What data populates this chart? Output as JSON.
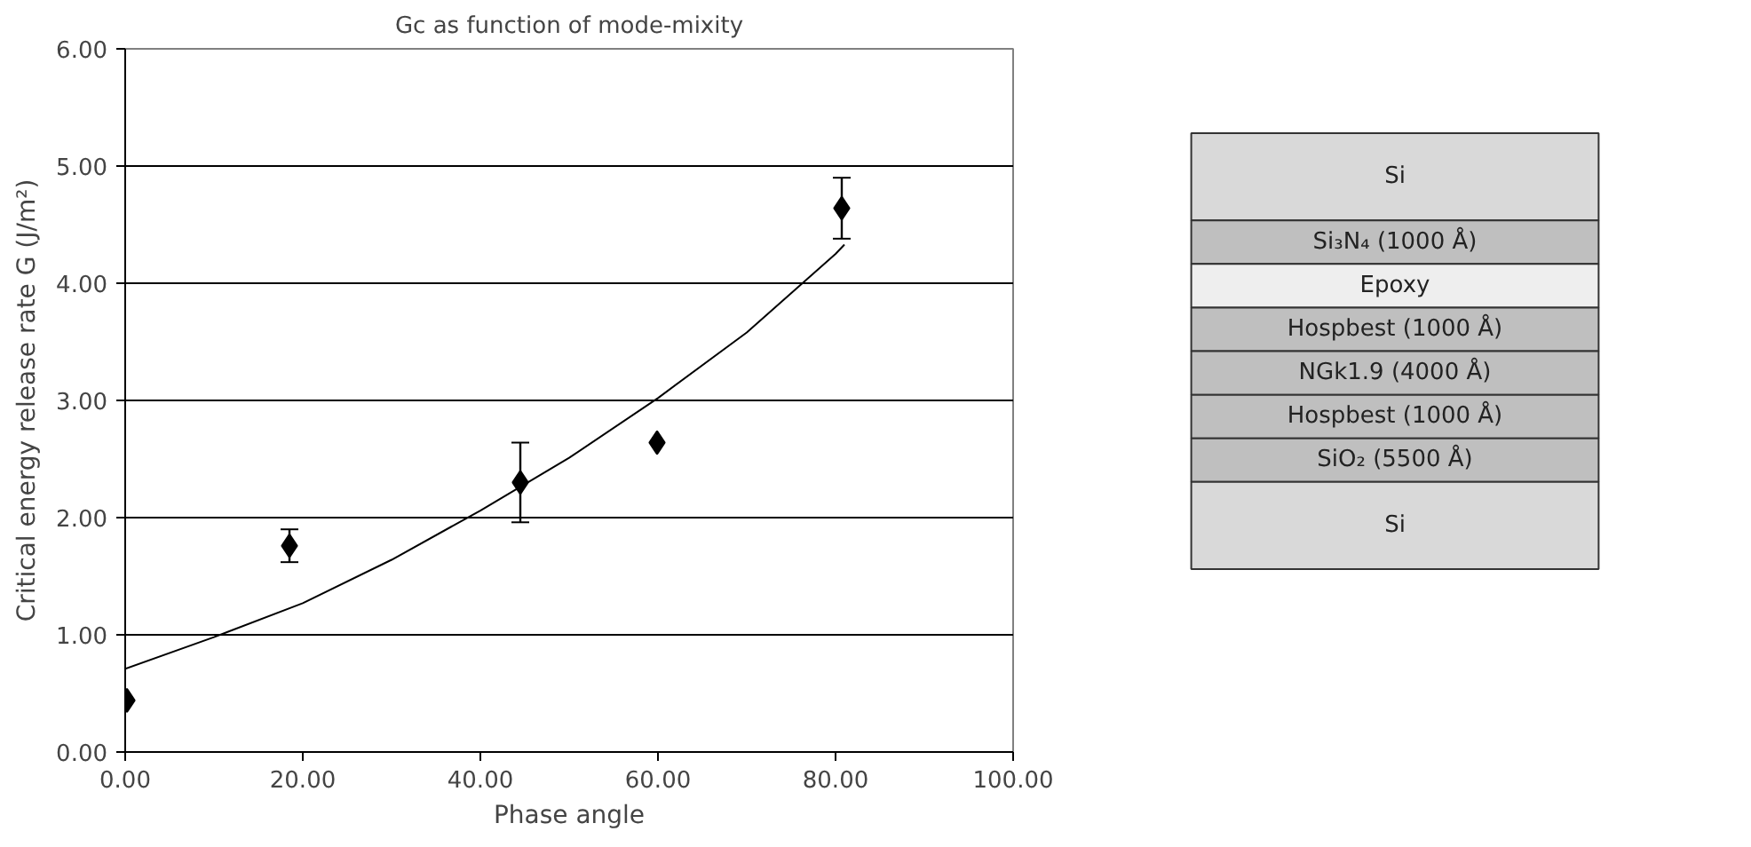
{
  "chart_data": [
    {
      "type": "scatter",
      "title": "Gc as function of mode-mixity",
      "xlabel": "Phase angle",
      "ylabel": "Critical energy release rate G (J/m²)",
      "xlim": [
        0,
        100
      ],
      "ylim": [
        0,
        6
      ],
      "xticks": [
        {
          "value": 0,
          "label": "0.00"
        },
        {
          "value": 20,
          "label": "20.00"
        },
        {
          "value": 40,
          "label": "40.00"
        },
        {
          "value": 60,
          "label": "60.00"
        },
        {
          "value": 80,
          "label": "80.00"
        },
        {
          "value": 100,
          "label": "100.00"
        }
      ],
      "yticks": [
        {
          "value": 0,
          "label": "0.00"
        },
        {
          "value": 1,
          "label": "1.00"
        },
        {
          "value": 2,
          "label": "2.00"
        },
        {
          "value": 3,
          "label": "3.00"
        },
        {
          "value": 4,
          "label": "4.00"
        },
        {
          "value": 5,
          "label": "5.00"
        },
        {
          "value": 6,
          "label": "6.00"
        }
      ],
      "grid": "y",
      "series": [
        {
          "type": "scatter",
          "marker": "diamond",
          "color": "#000000",
          "x": [
            0.2,
            18.5,
            44.5,
            59.9,
            80.7
          ],
          "values": [
            0.44,
            1.76,
            2.3,
            2.64,
            4.64
          ],
          "errors": [
            null,
            0.14,
            0.34,
            null,
            0.26
          ]
        },
        {
          "type": "line",
          "marker": "none",
          "line_style": "solid",
          "color": "#000000",
          "x": [
            0,
            10,
            20,
            30,
            40,
            50,
            60,
            70,
            80,
            81
          ],
          "values": [
            0.71,
            0.98,
            1.27,
            1.64,
            2.06,
            2.51,
            3.02,
            3.58,
            4.25,
            4.33
          ]
        }
      ]
    },
    {
      "type": "other",
      "categories": [
        "Si",
        "Si₃N₄ (1000 Å)",
        "Epoxy",
        "Hospbest (1000 Å)",
        "NGk1.9 (4000 Å)",
        "Hospbest (1000 Å)",
        "SiO₂ (5500 Å)",
        "Si"
      ],
      "colors": [
        "#d9d9d9",
        "#bfbfbf",
        "#eeeeee",
        "#bfbfbf",
        "#bfbfbf",
        "#bfbfbf",
        "#bfbfbf",
        "#d9d9d9"
      ]
    }
  ]
}
